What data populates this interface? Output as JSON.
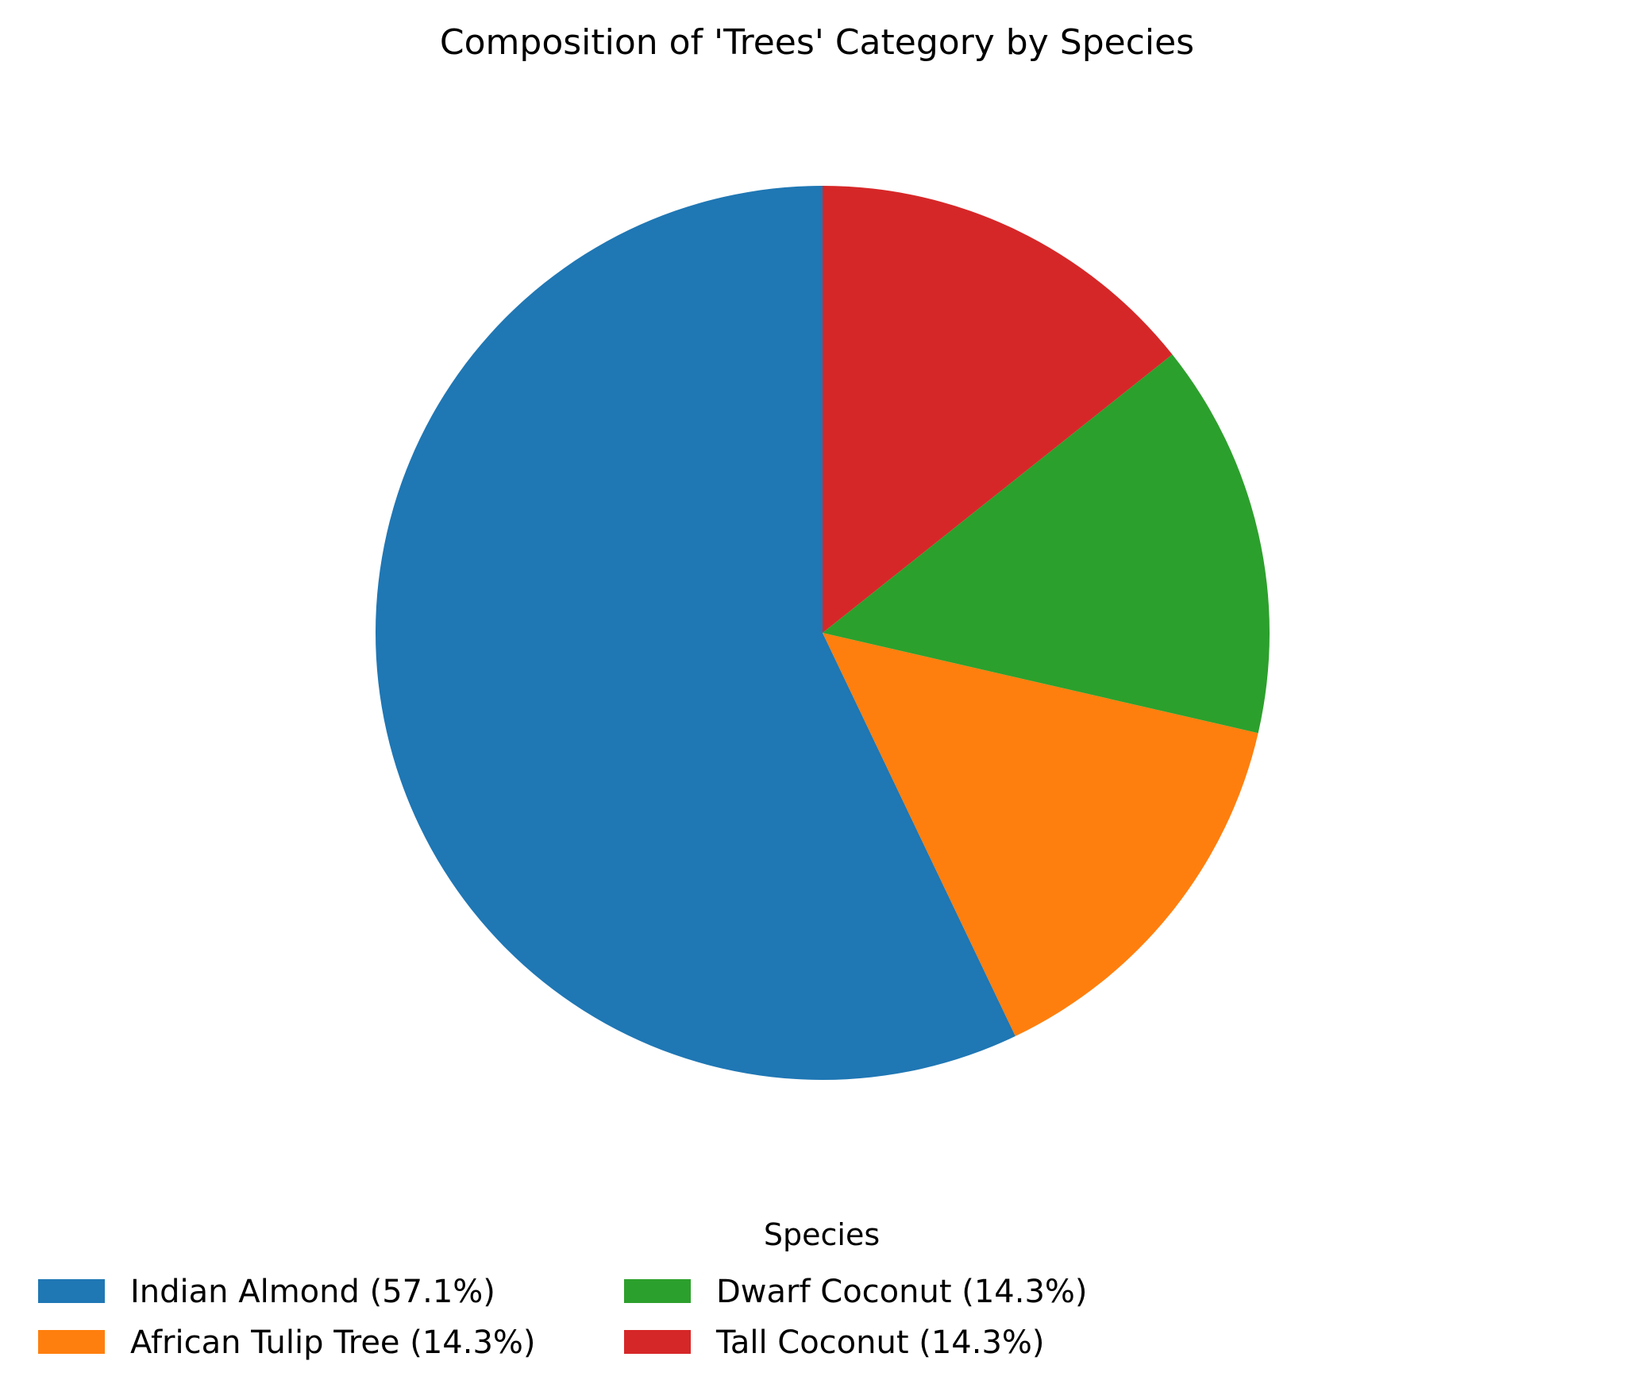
{
  "chart_data": {
    "type": "pie",
    "title": "Composition of 'Trees' Category by Species",
    "legend": {
      "title": "Species",
      "placement": "bottom-center",
      "columns": 3
    },
    "start_angle_deg": 90,
    "direction": "counterclockwise",
    "slices": [
      {
        "label": "Indian Almond (57.1%)",
        "value": 57.1,
        "color": "#1f77b4"
      },
      {
        "label": "African Tulip Tree (14.3%)",
        "value": 14.3,
        "color": "#ff7f0e"
      },
      {
        "label": "Dwarf Coconut (14.3%)",
        "value": 14.3,
        "color": "#2ca02c"
      },
      {
        "label": "Tall Coconut (14.3%)",
        "value": 14.3,
        "color": "#d62728"
      }
    ]
  }
}
